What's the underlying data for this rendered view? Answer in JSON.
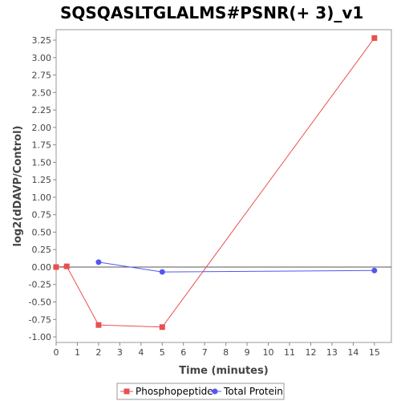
{
  "chart_data": {
    "type": "line",
    "title": "SQSQASLTGLALMS#PSNR(+ 3)_v1",
    "xlabel": "Time (minutes)",
    "ylabel": "log2(dDAVP/Control)",
    "xlim": [
      0,
      15.8
    ],
    "ylim": [
      -1.08,
      3.4
    ],
    "x_ticks": [
      0,
      1,
      2,
      3,
      4,
      5,
      6,
      7,
      8,
      9,
      10,
      11,
      12,
      13,
      14,
      15
    ],
    "y_ticks": [
      -1.0,
      -0.75,
      -0.5,
      -0.25,
      0.0,
      0.25,
      0.5,
      0.75,
      1.0,
      1.25,
      1.5,
      1.75,
      2.0,
      2.25,
      2.5,
      2.75,
      3.0,
      3.25
    ],
    "y_tick_labels": [
      "-1.00",
      "-0.75",
      "-0.50",
      "-0.25",
      "0.00",
      "0.25",
      "0.50",
      "0.75",
      "1.00",
      "1.25",
      "1.50",
      "1.75",
      "2.00",
      "2.25",
      "2.50",
      "2.75",
      "3.00",
      "3.25"
    ],
    "zero_line": 0,
    "grid": false,
    "legend_position": "bottom",
    "series": [
      {
        "name": "Phosphopeptide",
        "color": "#e8504f",
        "marker": "square",
        "x": [
          0,
          0.5,
          2,
          5,
          15
        ],
        "y": [
          0.0,
          0.01,
          -0.83,
          -0.86,
          3.28
        ]
      },
      {
        "name": "Total Protein",
        "color": "#5555f0",
        "marker": "circle",
        "x": [
          2,
          5,
          15
        ],
        "y": [
          0.07,
          -0.07,
          -0.05
        ]
      }
    ]
  }
}
